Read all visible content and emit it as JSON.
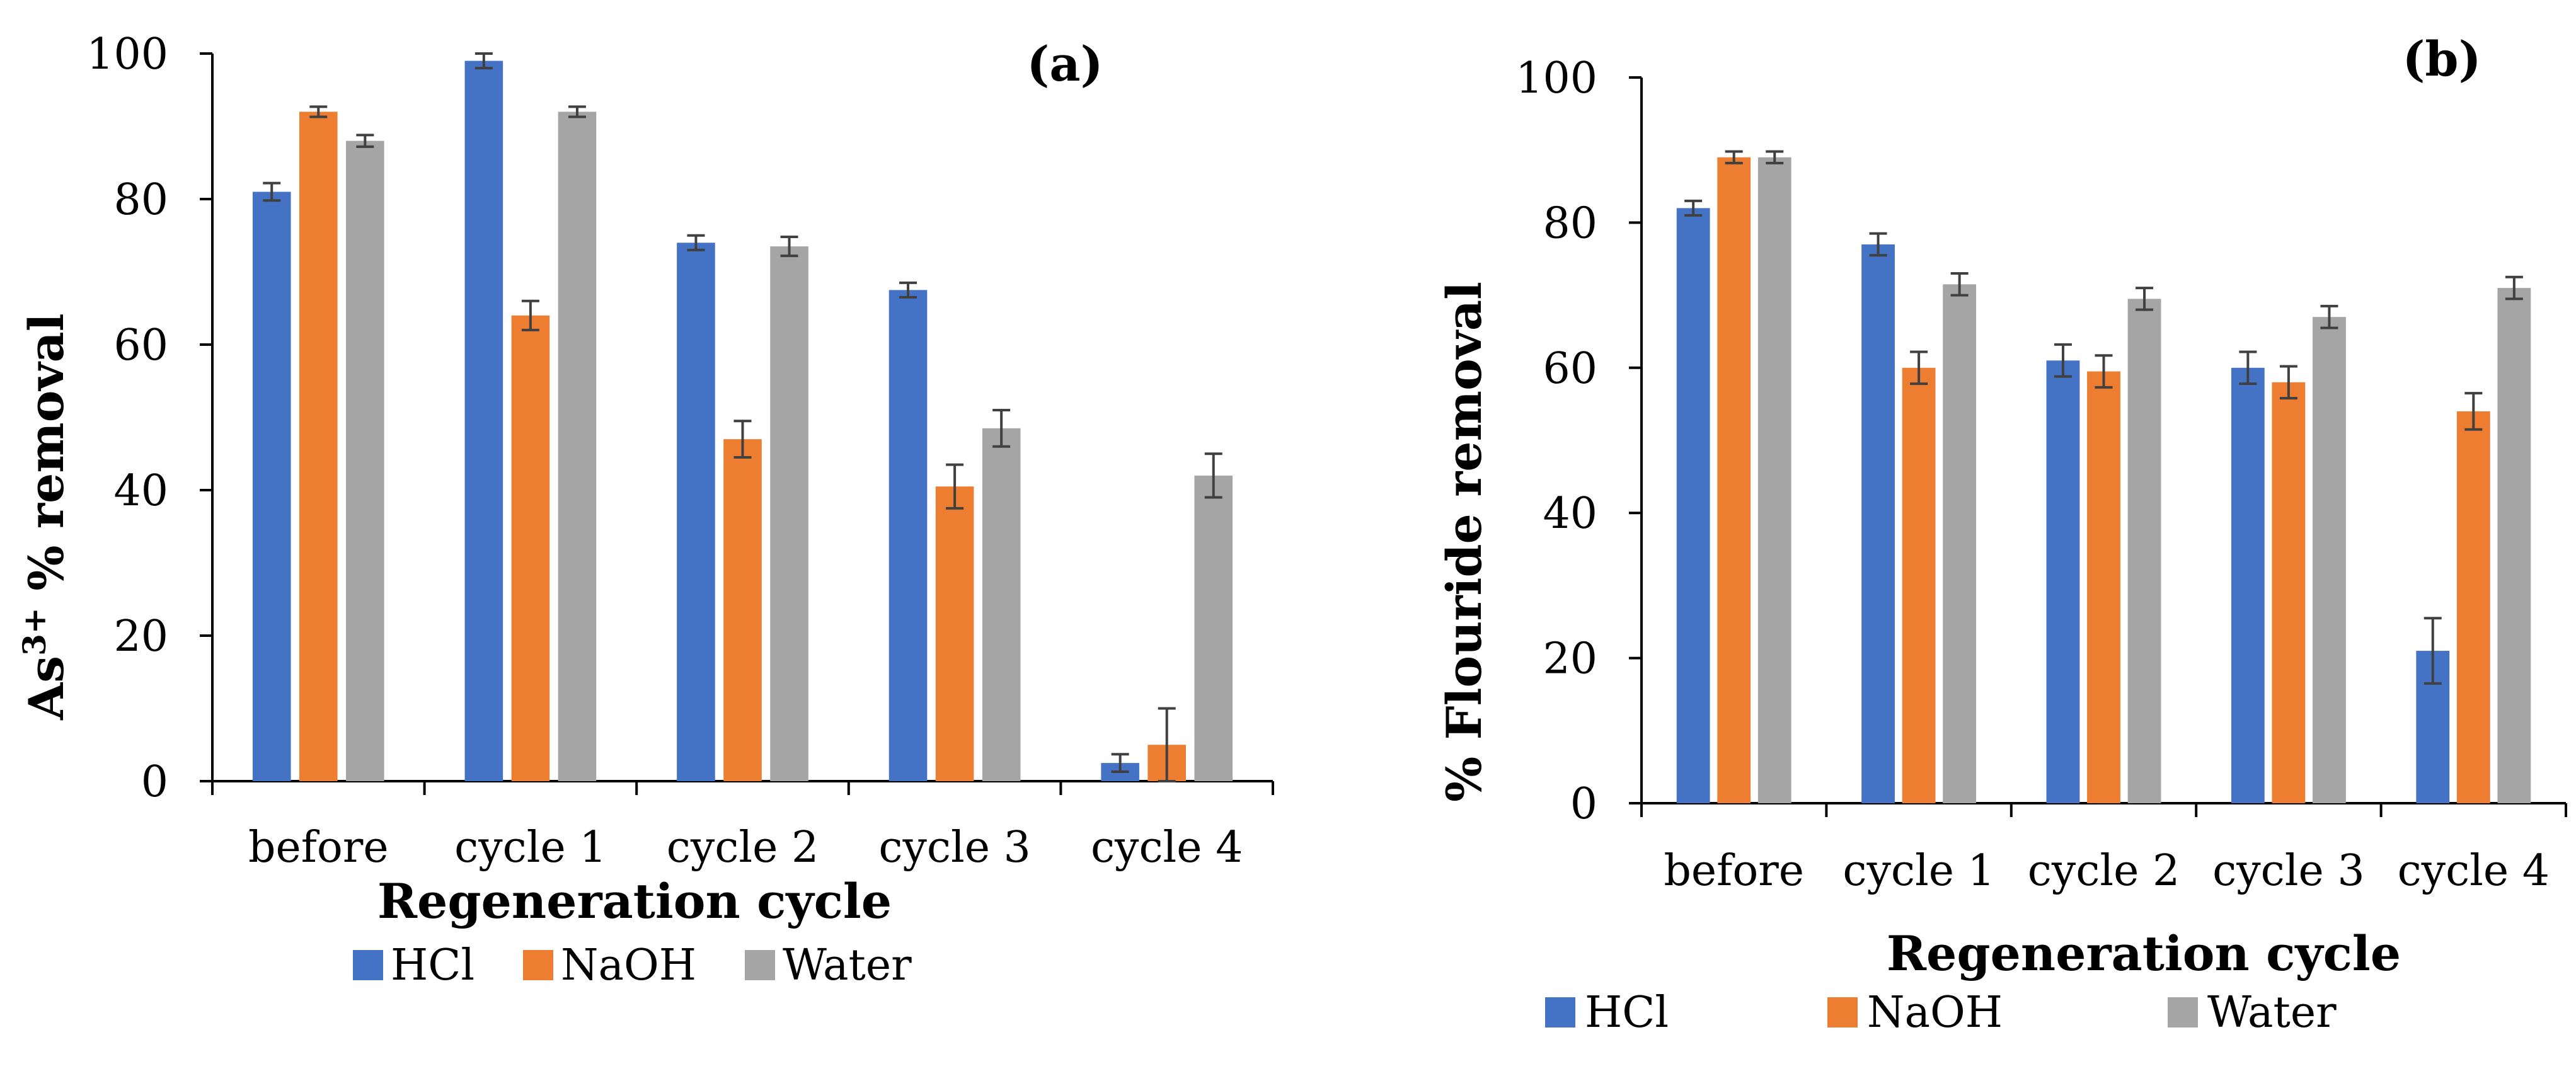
{
  "colors": {
    "HCl": "#4472C4",
    "NaOH": "#ED7D31",
    "Water": "#A5A5A5",
    "axis": "#000000",
    "errorbar": "#404040"
  },
  "chart_data": [
    {
      "type": "bar",
      "panel_label": "(a)",
      "xlabel": "Regeneration cycle",
      "ylabel_main": "As",
      "ylabel_sup": "3+",
      "ylabel_rest": " % removal",
      "ylim": [
        0,
        100
      ],
      "yticks": [
        "0",
        "20",
        "40",
        "60",
        "80",
        "100"
      ],
      "categories": [
        "before",
        "cycle 1",
        "cycle 2",
        "cycle 3",
        "cycle 4"
      ],
      "series": [
        {
          "name": "HCl",
          "values": [
            81,
            99,
            74,
            67.5,
            2.5
          ],
          "errors": [
            1.2,
            1.0,
            1.0,
            1.0,
            1.2
          ]
        },
        {
          "name": "NaOH",
          "values": [
            92,
            64,
            47,
            40.5,
            5
          ],
          "errors": [
            0.7,
            2.0,
            2.5,
            3.0,
            5.0
          ]
        },
        {
          "name": "Water",
          "values": [
            88,
            92,
            73.5,
            48.5,
            42
          ],
          "errors": [
            0.8,
            0.7,
            1.3,
            2.5,
            3.0
          ]
        }
      ],
      "legend": [
        "HCl",
        "NaOH",
        "Water"
      ],
      "legend_position": "bottom"
    },
    {
      "type": "bar",
      "panel_label": "(b)",
      "xlabel": "Regeneration cycle",
      "ylabel": "% Flouride removal",
      "ylim": [
        0,
        100
      ],
      "yticks": [
        "0",
        "20",
        "40",
        "60",
        "80",
        "100"
      ],
      "categories": [
        "before",
        "cycle 1",
        "cycle 2",
        "cycle 3",
        "cycle 4"
      ],
      "series": [
        {
          "name": "HCl",
          "values": [
            82,
            77,
            61,
            60,
            21
          ],
          "errors": [
            1.0,
            1.5,
            2.2,
            2.2,
            4.5
          ]
        },
        {
          "name": "NaOH",
          "values": [
            89,
            60,
            59.5,
            58,
            54
          ],
          "errors": [
            0.8,
            2.2,
            2.2,
            2.2,
            2.5
          ]
        },
        {
          "name": "Water",
          "values": [
            89,
            71.5,
            69.5,
            67,
            71
          ],
          "errors": [
            0.8,
            1.5,
            1.5,
            1.5,
            1.5
          ]
        }
      ],
      "legend": [
        "HCl",
        "NaOH",
        "Water"
      ],
      "legend_position": "bottom"
    }
  ]
}
